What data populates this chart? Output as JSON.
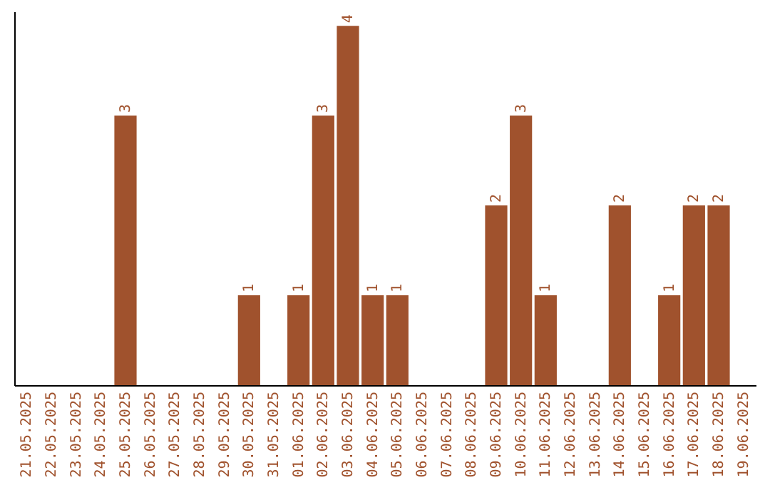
{
  "chart_data": {
    "type": "bar",
    "color": "#a0522d",
    "categories": [
      "21.05.2025",
      "22.05.2025",
      "23.05.2025",
      "24.05.2025",
      "25.05.2025",
      "26.05.2025",
      "27.05.2025",
      "28.05.2025",
      "29.05.2025",
      "30.05.2025",
      "31.05.2025",
      "01.06.2025",
      "02.06.2025",
      "03.06.2025",
      "04.06.2025",
      "05.06.2025",
      "06.06.2025",
      "07.06.2025",
      "08.06.2025",
      "09.06.2025",
      "10.06.2025",
      "11.06.2025",
      "12.06.2025",
      "13.06.2025",
      "14.06.2025",
      "15.06.2025",
      "16.06.2025",
      "17.06.2025",
      "18.06.2025",
      "19.06.2025"
    ],
    "values": [
      0,
      0,
      0,
      0,
      3,
      0,
      0,
      0,
      0,
      1,
      0,
      1,
      3,
      4,
      1,
      1,
      0,
      0,
      0,
      2,
      3,
      1,
      0,
      0,
      2,
      0,
      1,
      2,
      2,
      0
    ],
    "value_labels": [
      null,
      null,
      null,
      null,
      "3",
      null,
      null,
      null,
      null,
      "1",
      null,
      "1",
      "3",
      "4",
      "1",
      "1",
      null,
      null,
      null,
      "2",
      "3",
      "1",
      null,
      null,
      "2",
      null,
      "1",
      "2",
      "2",
      null
    ],
    "relative": false
  }
}
